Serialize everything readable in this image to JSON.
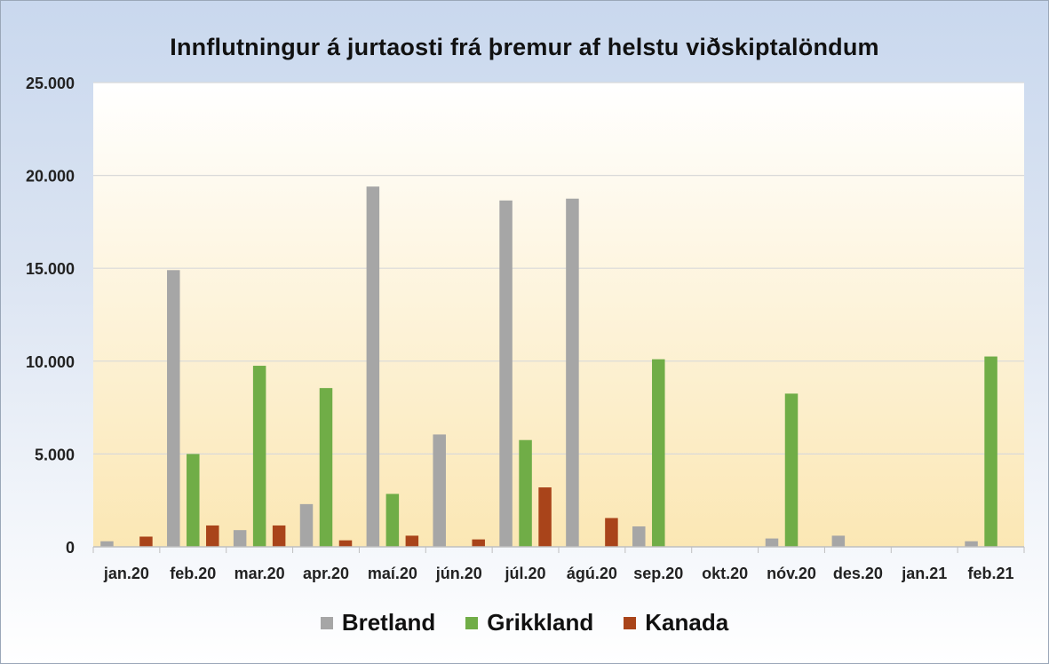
{
  "chart_data": {
    "type": "bar",
    "title": "Innflutningur  á jurtaosti  frá þremur af helstu viðskiptalöndum",
    "categories": [
      "jan.20",
      "feb.20",
      "mar.20",
      "apr.20",
      "maí.20",
      "jún.20",
      "júl.20",
      "ágú.20",
      "sep.20",
      "okt.20",
      "nóv.20",
      "des.20",
      "jan.21",
      "feb.21"
    ],
    "series": [
      {
        "name": "Bretland",
        "color": "#a6a6a6",
        "values": [
          300,
          14900,
          900,
          2300,
          19400,
          6050,
          18650,
          18750,
          1100,
          0,
          450,
          600,
          0,
          300
        ]
      },
      {
        "name": "Grikkland",
        "color": "#70ad47",
        "values": [
          0,
          5000,
          9750,
          8550,
          2850,
          0,
          5750,
          0,
          10100,
          0,
          8250,
          0,
          0,
          10250
        ]
      },
      {
        "name": "Kanada",
        "color": "#a9441a",
        "values": [
          550,
          1150,
          1150,
          350,
          600,
          400,
          3200,
          1550,
          0,
          0,
          0,
          0,
          0,
          0
        ]
      }
    ],
    "ylim": [
      0,
      25000
    ],
    "yticks": [
      0,
      5000,
      10000,
      15000,
      20000,
      25000
    ],
    "ytick_labels": [
      "0",
      "5.000",
      "10.000",
      "15.000",
      "20.000",
      "25.000"
    ],
    "grid": true,
    "legend_position": "bottom"
  }
}
